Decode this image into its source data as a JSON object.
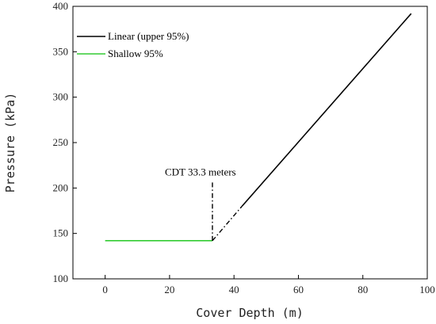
{
  "chart_data": {
    "type": "line",
    "title": "",
    "xlabel": "Cover Depth (m)",
    "ylabel": "Pressure (kPa)",
    "xlim": [
      -10,
      100
    ],
    "ylim": [
      100,
      400
    ],
    "xticks": [
      0,
      20,
      40,
      60,
      80,
      100
    ],
    "yticks": [
      100,
      150,
      200,
      250,
      300,
      350,
      400
    ],
    "grid": false,
    "legend_position": "top-left",
    "series": [
      {
        "name": "Linear (upper 95%)",
        "color": "#000000",
        "style": "solid",
        "x": [
          42.5,
          95
        ],
        "y": [
          180,
          392
        ]
      },
      {
        "name": "Shallow 95%",
        "color": "#33cc33",
        "style": "solid",
        "x": [
          0,
          33.3
        ],
        "y": [
          142,
          142
        ]
      }
    ],
    "extrapolation": {
      "color": "#000000",
      "style": "dashdot",
      "x": [
        33.3,
        42.5
      ],
      "y": [
        142,
        180
      ]
    },
    "annotation": {
      "text": "CDT 33.3 meters",
      "x": 33.3,
      "y_from": 142,
      "y_to": 207,
      "style": "dashdot"
    }
  }
}
